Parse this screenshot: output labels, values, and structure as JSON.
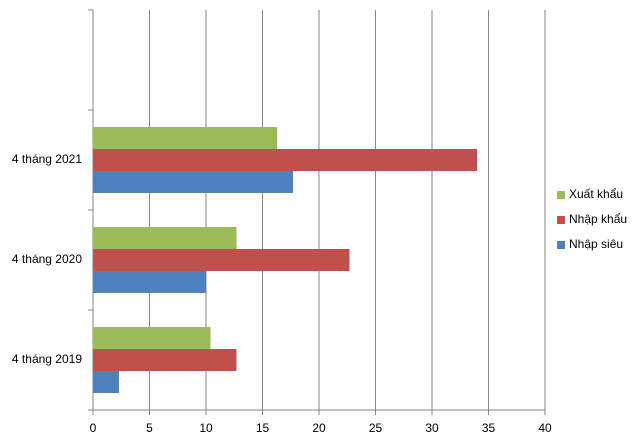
{
  "chart_data": {
    "type": "bar",
    "orientation": "horizontal",
    "categories": [
      null,
      "4 tháng 2021",
      "4 tháng 2020",
      "4 tháng 2019"
    ],
    "series": [
      {
        "name": "Xuất  khẩu",
        "color": "#9bbb59",
        "values": [
          null,
          16.3,
          12.7,
          10.4
        ]
      },
      {
        "name": "Nhập khẩu",
        "color": "#c0504d",
        "values": [
          null,
          34.0,
          22.7,
          12.7
        ]
      },
      {
        "name": "Nhập  siêu",
        "color": "#4f81bd",
        "values": [
          null,
          17.7,
          10.0,
          2.3
        ]
      }
    ],
    "xlim": [
      0,
      40
    ],
    "xticks": [
      0,
      5,
      10,
      15,
      20,
      25,
      30,
      35,
      40
    ],
    "grid": true,
    "legend": "right"
  }
}
